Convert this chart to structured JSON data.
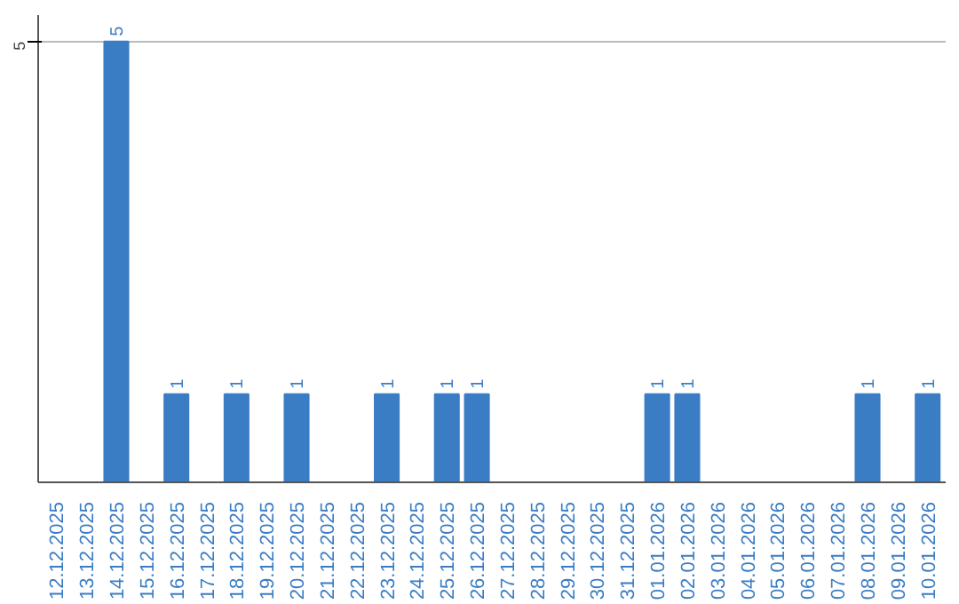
{
  "chart_data": {
    "type": "bar",
    "categories": [
      "12.12.2025",
      "13.12.2025",
      "14.12.2025",
      "15.12.2025",
      "16.12.2025",
      "17.12.2025",
      "18.12.2025",
      "19.12.2025",
      "20.12.2025",
      "21.12.2025",
      "22.12.2025",
      "23.12.2025",
      "24.12.2025",
      "25.12.2025",
      "26.12.2025",
      "27.12.2025",
      "28.12.2025",
      "29.12.2025",
      "30.12.2025",
      "31.12.2025",
      "01.01.2026",
      "02.01.2026",
      "03.01.2026",
      "04.01.2026",
      "05.01.2026",
      "06.01.2026",
      "07.01.2026",
      "08.01.2026",
      "09.01.2026",
      "10.01.2026"
    ],
    "values": [
      0,
      0,
      5,
      0,
      1,
      0,
      1,
      0,
      1,
      0,
      0,
      1,
      0,
      1,
      1,
      0,
      0,
      0,
      0,
      0,
      1,
      1,
      0,
      0,
      0,
      0,
      0,
      1,
      0,
      1
    ],
    "value_labels": [
      null,
      null,
      "5",
      null,
      "1",
      null,
      "1",
      null,
      "1",
      null,
      null,
      "1",
      null,
      "1",
      "1",
      null,
      null,
      null,
      null,
      null,
      "1",
      "1",
      null,
      null,
      null,
      null,
      null,
      "1",
      null,
      "1"
    ],
    "color": "#3b7dc4",
    "ylim": [
      0,
      5.3
    ],
    "yticks": [
      5
    ],
    "grid": "y"
  }
}
